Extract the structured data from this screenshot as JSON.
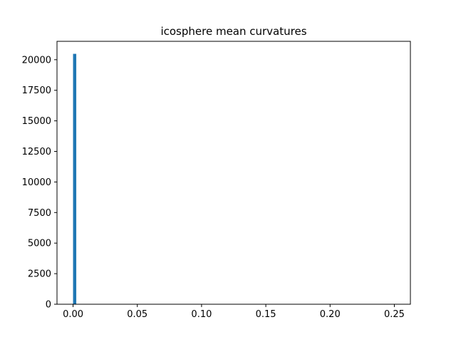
{
  "chart_data": {
    "type": "bar",
    "title": "icosphere mean curvatures",
    "xlabel": "",
    "ylabel": "",
    "xlim": [
      -0.0125,
      0.2625
    ],
    "ylim": [
      0,
      21504
    ],
    "x_ticks": [
      0.0,
      0.05,
      0.1,
      0.15,
      0.2,
      0.25
    ],
    "x_tick_labels": [
      "0.00",
      "0.05",
      "0.10",
      "0.15",
      "0.20",
      "0.25"
    ],
    "y_ticks": [
      0,
      2500,
      5000,
      7500,
      10000,
      12500,
      15000,
      17500,
      20000
    ],
    "y_tick_labels": [
      "0",
      "2500",
      "5000",
      "7500",
      "10000",
      "12500",
      "15000",
      "17500",
      "20000"
    ],
    "bar_color": "#1f77b4",
    "grid": false,
    "bins": [
      {
        "x_start": 0.0,
        "x_end": 0.0025,
        "count": 20480
      }
    ]
  }
}
